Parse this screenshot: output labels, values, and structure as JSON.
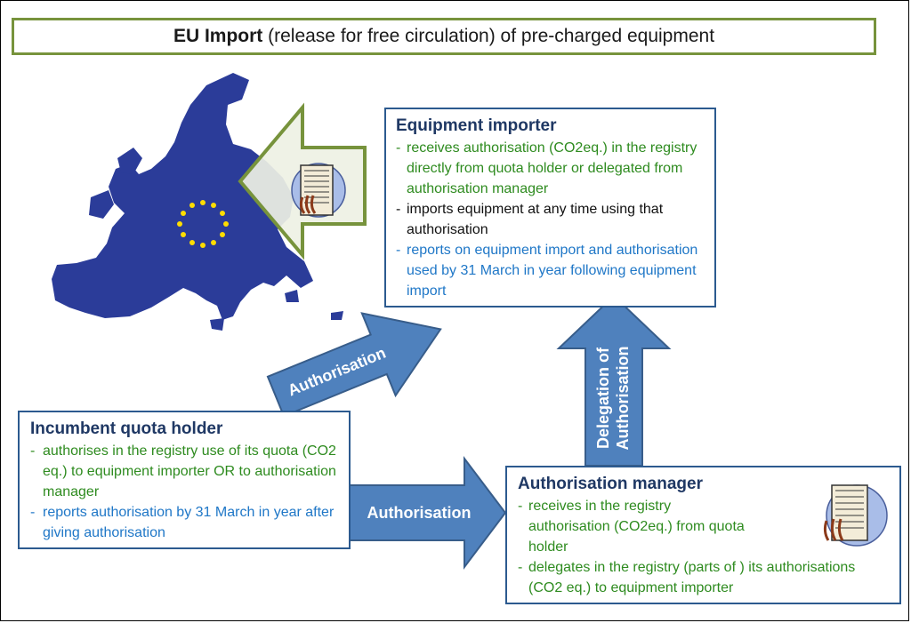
{
  "title": {
    "bold": "EU Import",
    "rest": " (release for free circulation) of pre-charged equipment"
  },
  "importer": {
    "heading": "Equipment importer",
    "items": [
      {
        "dash": "-",
        "text": "receives authorisation (CO2eq.) in the registry directly from quota holder or delegated from  authorisation manager"
      },
      {
        "dash": "-",
        "text": "imports equipment at any time using that authorisation"
      },
      {
        "dash": "-",
        "text": "reports  on equipment import and authorisation used by 31 March in year following equipment import"
      }
    ]
  },
  "holder": {
    "heading": "Incumbent quota holder",
    "items": [
      {
        "dash": "-",
        "text": "authorises in the registry use of its quota (CO2 eq.) to equipment importer OR to authorisation manager"
      },
      {
        "dash": "-",
        "text": "reports  authorisation by 31 March in year after giving authorisation"
      }
    ]
  },
  "manager": {
    "heading": "Authorisation manager",
    "items": [
      {
        "dash": "-",
        "text": "receives in the registry authorisation (CO2eq.) from quota holder"
      },
      {
        "dash": "-",
        "text": "delegates in the registry (parts of ) its authorisations (CO2 eq.) to equipment importer"
      }
    ]
  },
  "arrows": {
    "diagonal": "Authorisation",
    "horizontal": "Authorisation",
    "vertical_line1": "Delegation of",
    "vertical_line2": "Authorisation"
  },
  "colors": {
    "green_text": "#2e8b1f",
    "blue_text": "#1f77c7",
    "heading": "#1f3864",
    "arrow_fill": "#4f81bd",
    "title_border": "#77933c"
  },
  "icons": [
    "eu-map-icon",
    "equipment-unit-icon"
  ]
}
